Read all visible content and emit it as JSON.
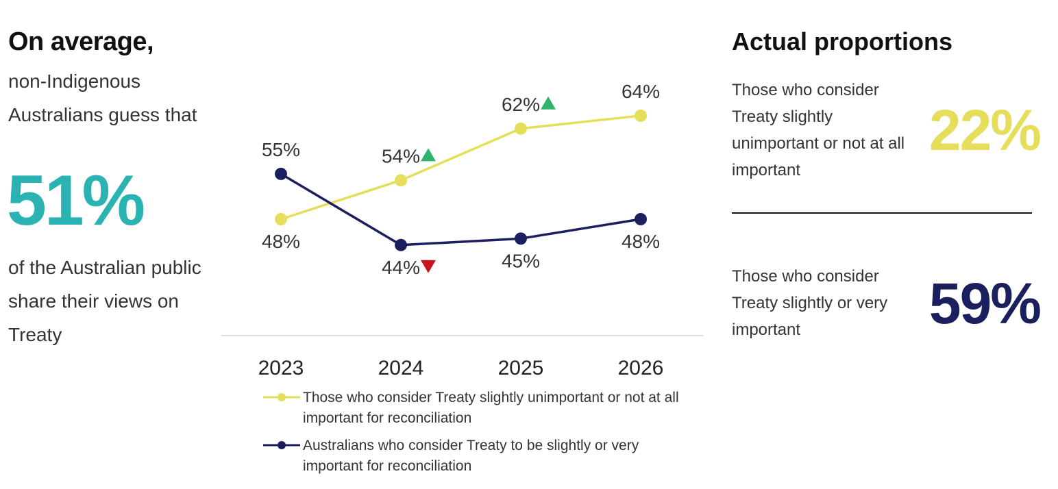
{
  "left": {
    "heading": "On average,",
    "intro": "non-Indigenous Australians guess that",
    "big_pct": "51%",
    "outro": "of the Australian public share their views on Treaty"
  },
  "right": {
    "heading": "Actual proportions",
    "unimportant_text": "Those who consider Treaty slightly unimportant or not at all important",
    "unimportant_pct": "22%",
    "important_text": "Those who consider Treaty slightly or very important",
    "important_pct": "59%"
  },
  "colors": {
    "teal": "#2bb3b3",
    "yellow": "#e6dd5a",
    "navy": "#1b1f5e",
    "up_arrow": "#2fb36b",
    "down_arrow": "#c8161d",
    "axis": "#d0d0d0"
  },
  "chart_data": {
    "type": "line",
    "x": [
      "2023",
      "2024",
      "2025",
      "2026"
    ],
    "ylim": [
      30,
      75
    ],
    "grid": false,
    "legend_placement": "bottom",
    "series": [
      {
        "name": "Those who consider Treaty slightly unimportant or not at all important for reconciliation",
        "color": "#e6dd5a",
        "values": [
          48,
          54,
          62,
          64
        ],
        "labels": [
          "48%",
          "54%",
          "62%",
          "64%"
        ],
        "label_positions": [
          "below",
          "above",
          "above",
          "above"
        ],
        "change_markers": [
          "",
          "up",
          "up",
          ""
        ]
      },
      {
        "name": "Australians who consider Treaty to be slightly or very important for reconciliation",
        "color": "#1b1f5e",
        "values": [
          55,
          44,
          45,
          48
        ],
        "labels": [
          "55%",
          "44%",
          "45%",
          "48%"
        ],
        "label_positions": [
          "above",
          "below",
          "below",
          "below"
        ],
        "change_markers": [
          "",
          "down",
          "",
          ""
        ]
      }
    ]
  }
}
